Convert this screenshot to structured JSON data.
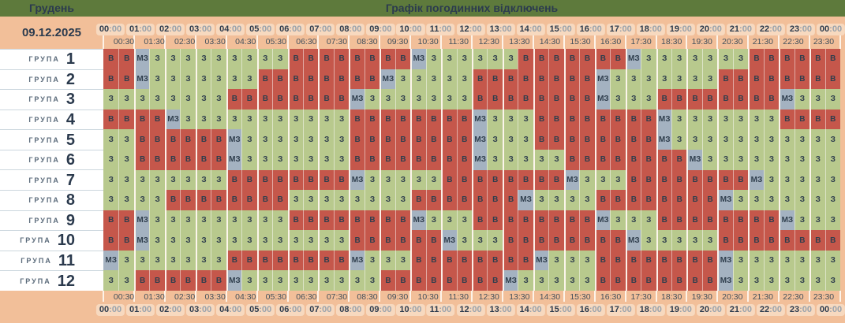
{
  "header": {
    "month": "Грудень",
    "title": "Графік погодинних відключень",
    "date": "09.12.2025"
  },
  "colors": {
    "header_bg": "#5e7a3c",
    "band_bg": "#f2bf99",
    "pill_bg": "#f7d9bf",
    "text_dark": "#2b3b4e",
    "text_light": "#98a2ac",
    "cell_outage": "#c5574b",
    "cell_on": "#b8c98d",
    "cell_maybe": "#a4b2c1"
  },
  "cell_states": {
    "outage": "В",
    "on": "З",
    "maybe": "МЗ"
  },
  "time": {
    "hours": [
      "00:00",
      "01:00",
      "02:00",
      "03:00",
      "04:00",
      "05:00",
      "06:00",
      "07:00",
      "08:00",
      "09:00",
      "10:00",
      "11:00",
      "12:00",
      "13:00",
      "14:00",
      "15:00",
      "16:00",
      "17:00",
      "18:00",
      "19:00",
      "20:00",
      "21:00",
      "22:00",
      "23:00",
      "00:00"
    ],
    "half_hours": [
      "00:30",
      "01:30",
      "02:30",
      "03:30",
      "04:30",
      "05:30",
      "06:30",
      "07:30",
      "08:30",
      "09:30",
      "10:30",
      "11:30",
      "12:30",
      "13:30",
      "14:30",
      "15:30",
      "16:30",
      "17:30",
      "18:30",
      "19:30",
      "20:30",
      "21:30",
      "22:30",
      "23:30"
    ]
  },
  "groups": [
    {
      "label": "ГРУПА",
      "number": "1",
      "cells": [
        "В",
        "В",
        "МЗ",
        "З",
        "З",
        "З",
        "З",
        "З",
        "З",
        "З",
        "З",
        "З",
        "В",
        "В",
        "В",
        "В",
        "В",
        "В",
        "В",
        "В",
        "МЗ",
        "З",
        "З",
        "З",
        "З",
        "З",
        "З",
        "В",
        "В",
        "В",
        "В",
        "В",
        "В",
        "В",
        "МЗ",
        "З",
        "З",
        "З",
        "З",
        "З",
        "З",
        "З",
        "В",
        "В",
        "В",
        "В",
        "В",
        "В"
      ]
    },
    {
      "label": "ГРУПА",
      "number": "2",
      "cells": [
        "В",
        "В",
        "МЗ",
        "З",
        "З",
        "З",
        "З",
        "З",
        "З",
        "З",
        "В",
        "В",
        "В",
        "В",
        "В",
        "В",
        "В",
        "В",
        "МЗ",
        "З",
        "З",
        "З",
        "З",
        "З",
        "В",
        "В",
        "В",
        "В",
        "В",
        "В",
        "В",
        "В",
        "МЗ",
        "З",
        "З",
        "З",
        "З",
        "З",
        "З",
        "З",
        "В",
        "В",
        "В",
        "В",
        "В",
        "В",
        "В",
        "В"
      ]
    },
    {
      "label": "ГРУПА",
      "number": "3",
      "cells": [
        "З",
        "З",
        "З",
        "З",
        "З",
        "З",
        "З",
        "З",
        "В",
        "В",
        "В",
        "В",
        "В",
        "В",
        "В",
        "В",
        "МЗ",
        "З",
        "З",
        "З",
        "З",
        "З",
        "З",
        "З",
        "В",
        "В",
        "В",
        "В",
        "В",
        "В",
        "В",
        "В",
        "МЗ",
        "З",
        "З",
        "З",
        "В",
        "В",
        "В",
        "В",
        "В",
        "В",
        "В",
        "В",
        "МЗ",
        "З",
        "З",
        "З"
      ]
    },
    {
      "label": "ГРУПА",
      "number": "4",
      "cells": [
        "В",
        "В",
        "В",
        "В",
        "МЗ",
        "З",
        "З",
        "З",
        "З",
        "З",
        "З",
        "З",
        "З",
        "З",
        "З",
        "З",
        "В",
        "В",
        "В",
        "В",
        "В",
        "В",
        "В",
        "В",
        "МЗ",
        "З",
        "З",
        "З",
        "В",
        "В",
        "В",
        "В",
        "В",
        "В",
        "В",
        "В",
        "МЗ",
        "З",
        "З",
        "З",
        "З",
        "З",
        "З",
        "З",
        "В",
        "В",
        "В",
        "В"
      ]
    },
    {
      "label": "ГРУПА",
      "number": "5",
      "cells": [
        "З",
        "З",
        "В",
        "В",
        "В",
        "В",
        "В",
        "В",
        "МЗ",
        "З",
        "З",
        "З",
        "З",
        "З",
        "З",
        "З",
        "В",
        "В",
        "В",
        "В",
        "В",
        "В",
        "В",
        "В",
        "МЗ",
        "З",
        "З",
        "З",
        "В",
        "В",
        "В",
        "В",
        "В",
        "В",
        "В",
        "В",
        "МЗ",
        "З",
        "З",
        "З",
        "З",
        "З",
        "З",
        "З",
        "З",
        "З",
        "З",
        "З"
      ]
    },
    {
      "label": "ГРУПА",
      "number": "6",
      "cells": [
        "З",
        "З",
        "В",
        "В",
        "В",
        "В",
        "В",
        "В",
        "МЗ",
        "З",
        "З",
        "З",
        "З",
        "З",
        "З",
        "З",
        "В",
        "В",
        "В",
        "В",
        "В",
        "В",
        "В",
        "В",
        "МЗ",
        "З",
        "З",
        "З",
        "З",
        "З",
        "В",
        "В",
        "В",
        "В",
        "В",
        "В",
        "В",
        "В",
        "МЗ",
        "З",
        "З",
        "З",
        "З",
        "З",
        "З",
        "З",
        "З",
        "З"
      ]
    },
    {
      "label": "ГРУПА",
      "number": "7",
      "cells": [
        "З",
        "З",
        "З",
        "З",
        "З",
        "З",
        "З",
        "З",
        "В",
        "В",
        "В",
        "В",
        "В",
        "В",
        "В",
        "В",
        "МЗ",
        "З",
        "З",
        "З",
        "З",
        "З",
        "В",
        "В",
        "В",
        "В",
        "В",
        "В",
        "В",
        "В",
        "МЗ",
        "З",
        "З",
        "З",
        "В",
        "В",
        "В",
        "В",
        "В",
        "В",
        "В",
        "В",
        "МЗ",
        "З",
        "З",
        "З",
        "З",
        "З"
      ]
    },
    {
      "label": "ГРУПА",
      "number": "8",
      "cells": [
        "З",
        "З",
        "З",
        "З",
        "В",
        "В",
        "В",
        "В",
        "В",
        "В",
        "В",
        "В",
        "З",
        "З",
        "З",
        "З",
        "З",
        "З",
        "З",
        "З",
        "В",
        "В",
        "В",
        "В",
        "В",
        "В",
        "В",
        "МЗ",
        "З",
        "З",
        "З",
        "З",
        "В",
        "В",
        "В",
        "В",
        "В",
        "В",
        "В",
        "В",
        "МЗ",
        "З",
        "З",
        "З",
        "З",
        "З",
        "З",
        "З"
      ]
    },
    {
      "label": "ГРУПА",
      "number": "9",
      "cells": [
        "В",
        "В",
        "МЗ",
        "З",
        "З",
        "З",
        "З",
        "З",
        "З",
        "З",
        "З",
        "З",
        "В",
        "В",
        "В",
        "В",
        "В",
        "В",
        "В",
        "В",
        "МЗ",
        "З",
        "З",
        "З",
        "В",
        "В",
        "В",
        "В",
        "В",
        "В",
        "В",
        "В",
        "МЗ",
        "З",
        "З",
        "З",
        "В",
        "В",
        "В",
        "В",
        "В",
        "В",
        "В",
        "В",
        "МЗ",
        "З",
        "З",
        "З"
      ]
    },
    {
      "label": "ГРУПА",
      "number": "10",
      "cells": [
        "В",
        "В",
        "МЗ",
        "З",
        "З",
        "З",
        "З",
        "З",
        "З",
        "З",
        "З",
        "З",
        "З",
        "З",
        "З",
        "З",
        "В",
        "В",
        "В",
        "В",
        "В",
        "В",
        "МЗ",
        "З",
        "З",
        "З",
        "В",
        "В",
        "В",
        "В",
        "В",
        "В",
        "В",
        "В",
        "МЗ",
        "З",
        "З",
        "З",
        "З",
        "З",
        "В",
        "В",
        "В",
        "В",
        "В",
        "В",
        "В",
        "В"
      ]
    },
    {
      "label": "ГРУПА",
      "number": "11",
      "cells": [
        "МЗ",
        "З",
        "З",
        "З",
        "З",
        "З",
        "З",
        "З",
        "В",
        "В",
        "В",
        "В",
        "В",
        "В",
        "В",
        "В",
        "МЗ",
        "З",
        "З",
        "З",
        "В",
        "В",
        "В",
        "В",
        "В",
        "В",
        "В",
        "В",
        "МЗ",
        "З",
        "З",
        "З",
        "В",
        "В",
        "В",
        "В",
        "В",
        "В",
        "В",
        "В",
        "МЗ",
        "З",
        "З",
        "З",
        "З",
        "З",
        "З",
        "З"
      ]
    },
    {
      "label": "ГРУПА",
      "number": "12",
      "cells": [
        "З",
        "З",
        "В",
        "В",
        "В",
        "В",
        "В",
        "В",
        "МЗ",
        "З",
        "З",
        "З",
        "З",
        "З",
        "З",
        "З",
        "З",
        "З",
        "В",
        "В",
        "В",
        "В",
        "В",
        "В",
        "В",
        "В",
        "МЗ",
        "З",
        "З",
        "З",
        "З",
        "З",
        "В",
        "В",
        "В",
        "В",
        "В",
        "В",
        "В",
        "В",
        "МЗ",
        "З",
        "З",
        "З",
        "З",
        "З",
        "З",
        "З"
      ]
    }
  ]
}
